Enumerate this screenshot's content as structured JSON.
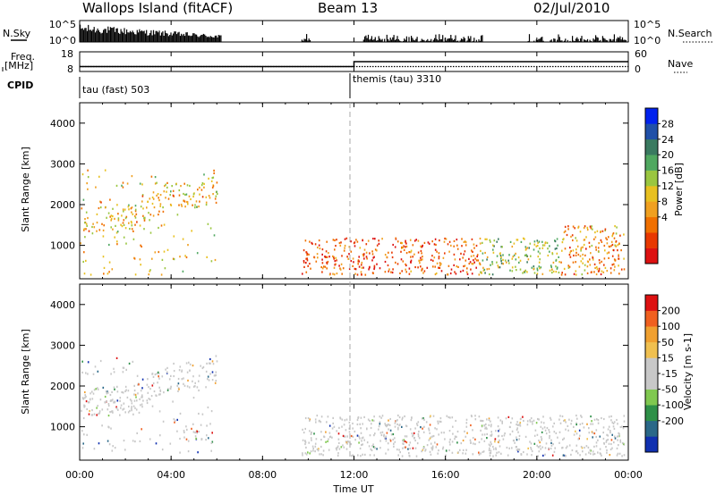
{
  "header": {
    "station": "Wallops Island (fitACF)",
    "beam": "Beam 13",
    "date": "02/Jul/2010"
  },
  "status_panel": {
    "nsky_label": "N.Sky",
    "nsearch_label": "N.Search",
    "nsky_ticks": [
      "10^5",
      "10^0"
    ],
    "nsky_right_ticks": [
      "10^5",
      "10^0"
    ],
    "freq_label_1": "Freq.",
    "freq_label_2": "[MHz]",
    "freq_ticks": [
      "18",
      "8"
    ],
    "nave_label": "Nave",
    "nave_ticks": [
      "60",
      "0"
    ],
    "cpid_label": "CPID",
    "cpid_segments": [
      "tau (fast) 503",
      "themis (tau) 3310"
    ]
  },
  "axes": {
    "ylabel": "Slant Range [km]",
    "xlabel": "Time UT",
    "x_ticks": [
      "00:00",
      "04:00",
      "08:00",
      "12:00",
      "16:00",
      "20:00",
      "00:00"
    ],
    "y_ticks": [
      "1000",
      "2000",
      "3000",
      "4000"
    ]
  },
  "colorbars": {
    "power": {
      "label": "Power [dB]",
      "ticks": [
        "4",
        "8",
        "12",
        "16",
        "20",
        "24",
        "28"
      ],
      "colors": [
        "#0022ee",
        "#2050a8",
        "#3a7a60",
        "#50a860",
        "#9ac640",
        "#e8c020",
        "#f0a020",
        "#f07000",
        "#e83800",
        "#dd1111"
      ]
    },
    "velocity": {
      "label": "Velocity [m s-1]",
      "ticks": [
        "200",
        "100",
        "50",
        "15",
        "-15",
        "-50",
        "-100",
        "-200"
      ],
      "colors": [
        "#1030b0",
        "#2a6888",
        "#2e9048",
        "#80c850",
        "#c8c8c8",
        "#c8c8c8",
        "#f0c050",
        "#f0a030",
        "#f06020",
        "#dd1111"
      ]
    }
  },
  "chart_data": [
    {
      "type": "line",
      "title": "N.Sky / N.Search",
      "x_range_hours": [
        0,
        24
      ],
      "yscale": "log",
      "ylim": [
        "10^0",
        "10^5"
      ],
      "nsky_active_intervals_hours": [
        [
          0.0,
          6.2
        ],
        [
          9.7,
          10.1
        ],
        [
          12.4,
          17.6
        ],
        [
          19.6,
          24.0
        ]
      ]
    },
    {
      "type": "line",
      "title": "Freq. [MHz] / Nave",
      "x_range_hours": [
        0,
        24
      ],
      "freq_mhz": [
        {
          "hours": [
            0,
            12
          ],
          "value": 10.5
        },
        {
          "hours": [
            12,
            24
          ],
          "value": 10.5
        }
      ],
      "nave": [
        {
          "hours": [
            0,
            12
          ],
          "value": 15
        },
        {
          "hours": [
            12,
            24
          ],
          "value": 30
        }
      ]
    },
    {
      "type": "heatmap",
      "title": "Power [dB]",
      "x_range_hours": [
        0,
        24
      ],
      "ylim_km": [
        180,
        4500
      ],
      "colorscale_range_db": [
        0,
        32
      ],
      "regions": [
        {
          "t": [
            0.0,
            6.0
          ],
          "r": [
            300,
            2900
          ],
          "level": "mixed 4-28 dB",
          "c": [
            0.55,
            0.65
          ]
        },
        {
          "t": [
            9.7,
            17.5
          ],
          "r": [
            300,
            1200
          ],
          "level": "high 16-28 dB near 12:00",
          "c": [
            0.75,
            0.9
          ]
        },
        {
          "t": [
            17.5,
            21.0
          ],
          "r": [
            300,
            1200
          ],
          "level": "low 4-16 dB",
          "c": [
            0.4,
            0.5
          ]
        },
        {
          "t": [
            21.0,
            23.8
          ],
          "r": [
            300,
            1500
          ],
          "level": "mixed 8-28 dB",
          "c": [
            0.6,
            0.8
          ]
        }
      ]
    },
    {
      "type": "heatmap",
      "title": "Velocity [m s-1]",
      "x_range_hours": [
        0,
        24
      ],
      "ylim_km": [
        180,
        4500
      ],
      "colorscale_range_mps": [
        -250,
        250
      ],
      "regions": [
        {
          "t": [
            0.0,
            6.0
          ],
          "r": [
            300,
            2800
          ],
          "level": "mostly -15 to 15, some -50",
          "c": [
            0.5,
            0.55
          ]
        },
        {
          "t": [
            4.5,
            5.8
          ],
          "r": [
            700,
            1100
          ],
          "level": "50 to 100",
          "c": [
            0.8,
            0.85
          ]
        },
        {
          "t": [
            9.7,
            23.8
          ],
          "r": [
            300,
            1300
          ],
          "level": "mostly -15 to 15",
          "c": [
            0.5,
            0.5
          ]
        }
      ]
    }
  ]
}
